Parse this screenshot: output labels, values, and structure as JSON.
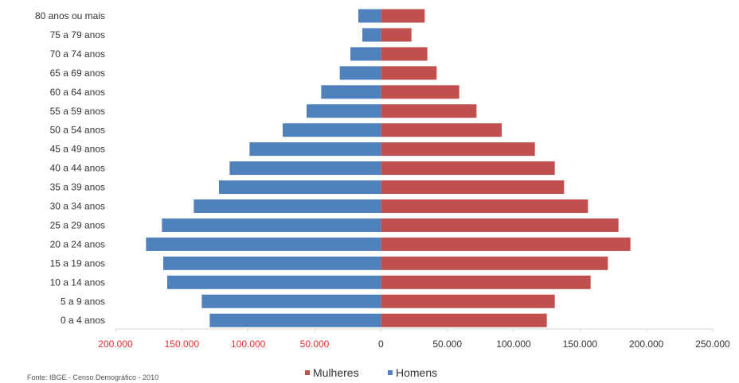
{
  "chart_data": {
    "type": "bar",
    "orientation": "horizontal",
    "layout": "population-pyramid",
    "categories": [
      "80 anos ou mais",
      "75 a 79 anos",
      "70 a 74 anos",
      "65 a 69 anos",
      "60 a 64 anos",
      "55 a 59 anos",
      "50 a 54 anos",
      "45 a 49 anos",
      "40 a 44 anos",
      "35 a 39 anos",
      "30 a 34 anos",
      "25 a 29 anos",
      "20 a 24 anos",
      "15 a 19 anos",
      "10 a 14 anos",
      "5 a 9 anos",
      "0 a 4 anos"
    ],
    "series": [
      {
        "name": "Mulheres",
        "color": "#c0504d",
        "side": "right",
        "values": [
          33000,
          23000,
          35000,
          42000,
          59000,
          72000,
          91000,
          116000,
          131000,
          138000,
          156000,
          179000,
          188000,
          171000,
          158000,
          131000,
          125000
        ]
      },
      {
        "name": "Homens",
        "color": "#4f81bd",
        "side": "left",
        "values": [
          17000,
          14000,
          23000,
          31000,
          45000,
          56000,
          74000,
          99000,
          114000,
          122000,
          141000,
          165000,
          177000,
          164000,
          161000,
          135000,
          129000
        ]
      }
    ],
    "xlim": [
      -200000,
      250000
    ],
    "x_ticks": [
      {
        "value": -200000,
        "label": "200.000"
      },
      {
        "value": -150000,
        "label": "150.000"
      },
      {
        "value": -100000,
        "label": "100.000"
      },
      {
        "value": -50000,
        "label": "50.000"
      },
      {
        "value": 0,
        "label": "0"
      },
      {
        "value": 50000,
        "label": "50.000"
      },
      {
        "value": 100000,
        "label": "100.000"
      },
      {
        "value": 150000,
        "label": "150.000"
      },
      {
        "value": 200000,
        "label": "200.000"
      },
      {
        "value": 250000,
        "label": "250.000"
      }
    ],
    "negative_tick_color": "#e03030",
    "positive_tick_color": "#333333",
    "grid": false,
    "legend_position": "bottom",
    "legend": [
      "Mulheres",
      "Homens"
    ],
    "source": "Fonte: IBGE - Censo Demográfico - 2010"
  }
}
